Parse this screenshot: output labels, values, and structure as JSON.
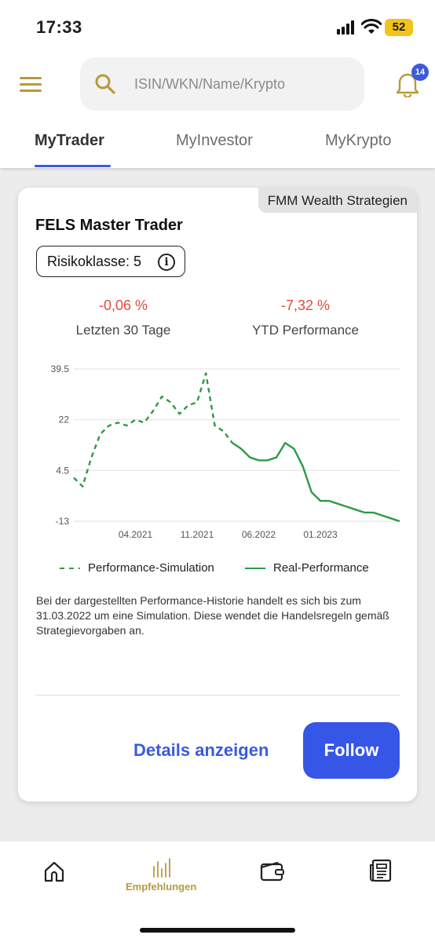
{
  "status_bar": {
    "time": "17:33",
    "battery": "52"
  },
  "search": {
    "placeholder": "ISIN/WKN/Name/Krypto"
  },
  "notifications": {
    "count": "14"
  },
  "tabs": [
    {
      "label": "MyTrader",
      "active": true
    },
    {
      "label": "MyInvestor",
      "active": false
    },
    {
      "label": "MyKrypto",
      "active": false
    }
  ],
  "card": {
    "provider": "FMM Wealth Strategien",
    "title": "FELS Master Trader",
    "risk_label": "Risikoklasse: 5",
    "kpis": [
      {
        "value": "-0,06 %",
        "label": "Letzten 30 Tage"
      },
      {
        "value": "-7,32 %",
        "label": "YTD Performance"
      }
    ],
    "legend": {
      "simulation": "Performance-Simulation",
      "real": "Real-Performance"
    },
    "disclaimer": "Bei der dargestellten Performance-Historie handelt es sich bis zum 31.03.2022 um eine Simulation. Diese wendet die Handelsregeln gemäß Strategievorgaben an.",
    "details_label": "Details anzeigen",
    "follow_label": "Follow"
  },
  "chart_data": {
    "type": "line",
    "x_ticks": [
      "04.2021",
      "11.2021",
      "06.2022",
      "01.2023"
    ],
    "y_ticks": [
      "39.5",
      "22",
      "4.5",
      "-13"
    ],
    "ylim": [
      -13,
      39.5
    ],
    "grid": true,
    "legend_position": "bottom",
    "series": [
      {
        "name": "Performance-Simulation",
        "style": "dashed",
        "color": "#2e9a45",
        "points": [
          [
            "2020-09",
            2
          ],
          [
            "2020-10",
            -1
          ],
          [
            "2020-11",
            9
          ],
          [
            "2020-12",
            17
          ],
          [
            "2021-01",
            20
          ],
          [
            "2021-02",
            21
          ],
          [
            "2021-03",
            20
          ],
          [
            "2021-04",
            22
          ],
          [
            "2021-05",
            21
          ],
          [
            "2021-06",
            25
          ],
          [
            "2021-07",
            30
          ],
          [
            "2021-08",
            28
          ],
          [
            "2021-09",
            24
          ],
          [
            "2021-10",
            27
          ],
          [
            "2021-11",
            28
          ],
          [
            "2021-12",
            38
          ],
          [
            "2022-01",
            20
          ],
          [
            "2022-02",
            18
          ],
          [
            "2022-03",
            14
          ]
        ]
      },
      {
        "name": "Real-Performance",
        "style": "solid",
        "color": "#2e9a45",
        "points": [
          [
            "2022-03",
            14
          ],
          [
            "2022-04",
            12
          ],
          [
            "2022-05",
            9
          ],
          [
            "2022-06",
            8
          ],
          [
            "2022-07",
            8
          ],
          [
            "2022-08",
            9
          ],
          [
            "2022-09",
            14
          ],
          [
            "2022-10",
            12
          ],
          [
            "2022-11",
            6
          ],
          [
            "2022-12",
            -3
          ],
          [
            "2023-01",
            -6
          ],
          [
            "2023-02",
            -6
          ],
          [
            "2023-03",
            -7
          ],
          [
            "2023-04",
            -8
          ],
          [
            "2023-05",
            -9
          ],
          [
            "2023-06",
            -10
          ],
          [
            "2023-07",
            -10
          ],
          [
            "2023-08",
            -11
          ],
          [
            "2023-09",
            -12
          ],
          [
            "2023-10",
            -13
          ]
        ]
      }
    ]
  },
  "bottom_nav": [
    {
      "icon": "home-icon",
      "label": ""
    },
    {
      "icon": "chart-bars-icon",
      "label": "Empfehlungen",
      "active": true
    },
    {
      "icon": "wallet-icon",
      "label": ""
    },
    {
      "icon": "news-icon",
      "label": ""
    }
  ],
  "colors": {
    "accent": "#3b5bdb",
    "gold": "#b89a3c",
    "negative": "#e14b3f",
    "line": "#2e9a45"
  }
}
